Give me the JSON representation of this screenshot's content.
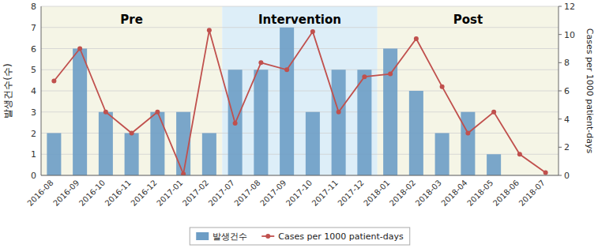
{
  "chart_data": {
    "type": "bar",
    "categories": [
      "2016-08",
      "2016-09",
      "2016-10",
      "2016-11",
      "2016-12",
      "2017-01",
      "2017-02",
      "2017-07",
      "2017-08",
      "2017-09",
      "2017-10",
      "2017-11",
      "2017-12",
      "2018-01",
      "2018-02",
      "2018-03",
      "2018-04",
      "2018-05",
      "2018-06",
      "2018-07"
    ],
    "series": [
      {
        "name": "발생건수",
        "type": "bar",
        "color": "#6d9dc5",
        "values": [
          2,
          6,
          3,
          2,
          3,
          3,
          2,
          5,
          5,
          7,
          3,
          5,
          5,
          6,
          4,
          2,
          3,
          1,
          0,
          0
        ]
      },
      {
        "name": "Cases per 1000 patient-days",
        "type": "line",
        "axis": "y2",
        "color": "#c0504d",
        "marker": "circle",
        "values": [
          6.7,
          9.0,
          4.5,
          3.0,
          4.5,
          0.1,
          10.3,
          3.7,
          8.0,
          7.5,
          10.2,
          4.5,
          7.0,
          7.2,
          9.7,
          6.3,
          3.0,
          4.5,
          1.5,
          0.2
        ]
      }
    ],
    "ylabel": "발생건수(수)",
    "y2label": "Cases per 1000 patient-days",
    "ylim": [
      0,
      8
    ],
    "yticks": [
      0,
      1,
      2,
      3,
      4,
      5,
      6,
      7,
      8
    ],
    "y2lim": [
      0,
      12
    ],
    "y2ticks": [
      0,
      2,
      4,
      6,
      8,
      10,
      12
    ],
    "grid": true,
    "legend": "bottom",
    "regions": [
      {
        "label": "Pre",
        "start": "2016-08",
        "end": "2017-02",
        "color": "#f5f5e6"
      },
      {
        "label": "Intervention",
        "start": "2017-07",
        "end": "2017-12",
        "color": "#ddeef8"
      },
      {
        "label": "Post",
        "start": "2018-01",
        "end": "2018-07",
        "color": "#f5f5e6"
      }
    ]
  }
}
